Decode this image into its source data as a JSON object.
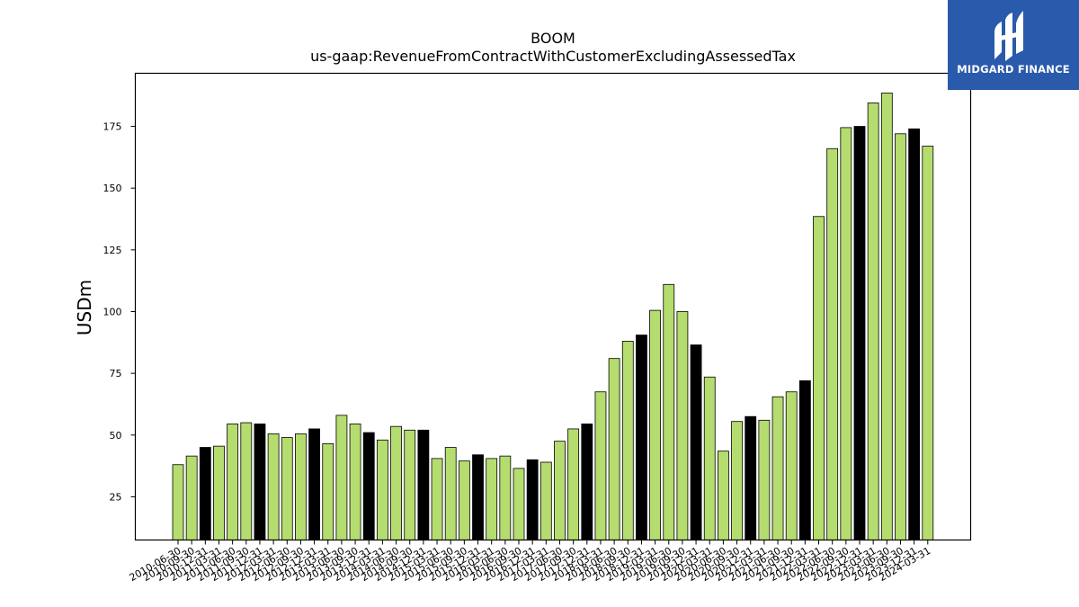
{
  "chart_data": {
    "type": "bar",
    "title": "BOOM",
    "subtitle": "us-gaap:RevenueFromContractWithCustomerExcludingAssessedTax",
    "xlabel": "",
    "ylabel": "USDm",
    "ylim": [
      7.5,
      196.5
    ],
    "yticks": [
      25,
      50,
      75,
      100,
      125,
      150,
      175
    ],
    "colors": {
      "quarter": "#b5dc6e",
      "fiscal_year_end": "#000000",
      "edge": "#000000"
    },
    "categories": [
      "2010-06-30",
      "2010-09-30",
      "2010-12-31",
      "2011-03-31",
      "2011-06-30",
      "2011-09-30",
      "2011-12-31",
      "2012-03-31",
      "2012-06-30",
      "2012-09-30",
      "2012-12-31",
      "2013-03-31",
      "2013-06-30",
      "2013-09-30",
      "2013-12-31",
      "2014-03-31",
      "2014-06-30",
      "2014-09-30",
      "2014-12-31",
      "2015-03-31",
      "2015-06-30",
      "2015-09-30",
      "2015-12-31",
      "2016-03-31",
      "2016-06-30",
      "2016-09-30",
      "2016-12-31",
      "2017-03-31",
      "2017-06-30",
      "2017-09-30",
      "2017-12-31",
      "2018-03-31",
      "2018-06-30",
      "2018-09-30",
      "2018-12-31",
      "2019-03-31",
      "2019-06-30",
      "2019-09-30",
      "2019-12-31",
      "2020-03-31",
      "2020-06-30",
      "2020-09-30",
      "2020-12-31",
      "2021-03-31",
      "2021-06-30",
      "2021-09-30",
      "2021-12-31",
      "2022-03-31",
      "2022-06-30",
      "2022-09-30",
      "2022-12-31",
      "2023-03-31",
      "2023-06-30",
      "2023-09-30",
      "2023-12-31",
      "2024-03-31"
    ],
    "values": [
      38,
      41.5,
      45,
      45.5,
      54.5,
      55,
      54.5,
      50.5,
      49,
      50.5,
      52.5,
      46.5,
      58,
      54.5,
      51,
      48,
      53.5,
      52,
      52,
      40.5,
      45,
      39.5,
      42,
      40.5,
      41.5,
      36.5,
      40,
      39,
      47.5,
      52.5,
      54.5,
      67.5,
      81,
      88,
      90.5,
      100.5,
      111,
      100,
      86.5,
      73.5,
      43.5,
      55.5,
      57.5,
      56,
      65.5,
      67.5,
      72,
      138.5,
      166,
      174.5,
      175,
      184.5,
      188.5,
      172,
      174,
      167
    ],
    "highlight": [
      false,
      false,
      true,
      false,
      false,
      false,
      true,
      false,
      false,
      false,
      true,
      false,
      false,
      false,
      true,
      false,
      false,
      false,
      true,
      false,
      false,
      false,
      true,
      false,
      false,
      false,
      true,
      false,
      false,
      false,
      true,
      false,
      false,
      false,
      true,
      false,
      false,
      false,
      true,
      false,
      false,
      false,
      true,
      false,
      false,
      false,
      true,
      false,
      false,
      false,
      true,
      false,
      false,
      false,
      true,
      false
    ],
    "grid": false,
    "legend": "none"
  },
  "logo": {
    "text": "MIDGARD FINANCE",
    "icon": "midgard-logo-icon"
  }
}
